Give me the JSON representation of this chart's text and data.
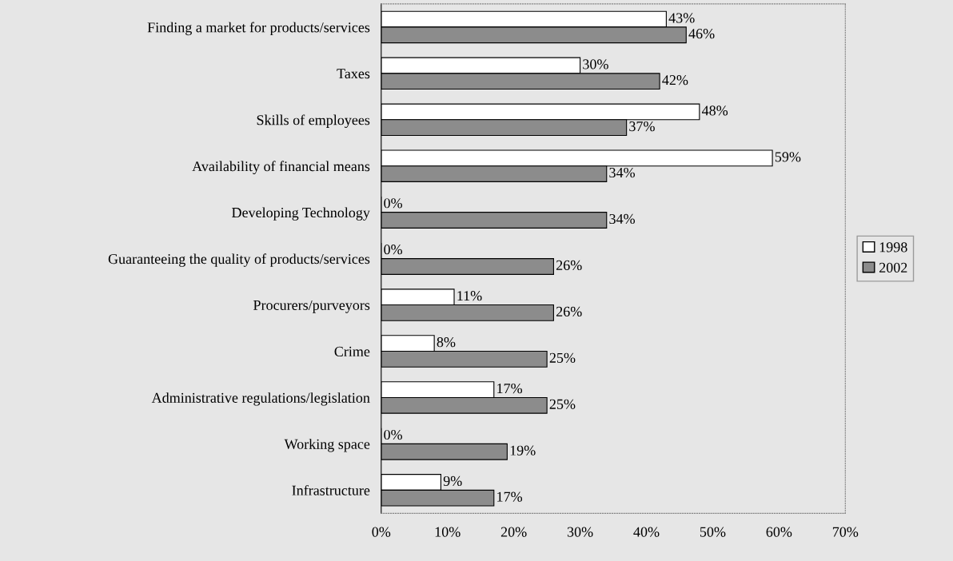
{
  "chart_data": {
    "type": "bar",
    "orientation": "horizontal",
    "categories": [
      "Finding a market for products/services",
      "Taxes",
      "Skills of employees",
      "Availability of financial means",
      "Developing Technology",
      "Guaranteeing the quality of products/services",
      "Procurers/purveyors",
      "Crime",
      "Administrative regulations/legislation",
      "Working space",
      "Infrastructure"
    ],
    "series": [
      {
        "name": "1998",
        "color": "#ffffff",
        "values": [
          43,
          30,
          48,
          59,
          0,
          0,
          11,
          8,
          17,
          0,
          9
        ],
        "value_labels": [
          "43%",
          "30%",
          "48%",
          "59%",
          "0%",
          "0%",
          "11%",
          "8%",
          "17%",
          "0%",
          "9%"
        ]
      },
      {
        "name": "2002",
        "color": "#8c8c8c",
        "values": [
          46,
          42,
          37,
          34,
          34,
          26,
          26,
          25,
          25,
          19,
          17
        ],
        "value_labels": [
          "46%",
          "42%",
          "37%",
          "34%",
          "34%",
          "26%",
          "26%",
          "25%",
          "25%",
          "19%",
          "17%"
        ]
      }
    ],
    "xlim": [
      0,
      70
    ],
    "xticks": [
      {
        "value": 0,
        "label": "0%"
      },
      {
        "value": 10,
        "label": "10%"
      },
      {
        "value": 20,
        "label": "20%"
      },
      {
        "value": 30,
        "label": "30%"
      },
      {
        "value": 40,
        "label": "40%"
      },
      {
        "value": 50,
        "label": "50%"
      },
      {
        "value": 60,
        "label": "60%"
      },
      {
        "value": 70,
        "label": "70%"
      }
    ],
    "grid": false,
    "legend": "right"
  }
}
